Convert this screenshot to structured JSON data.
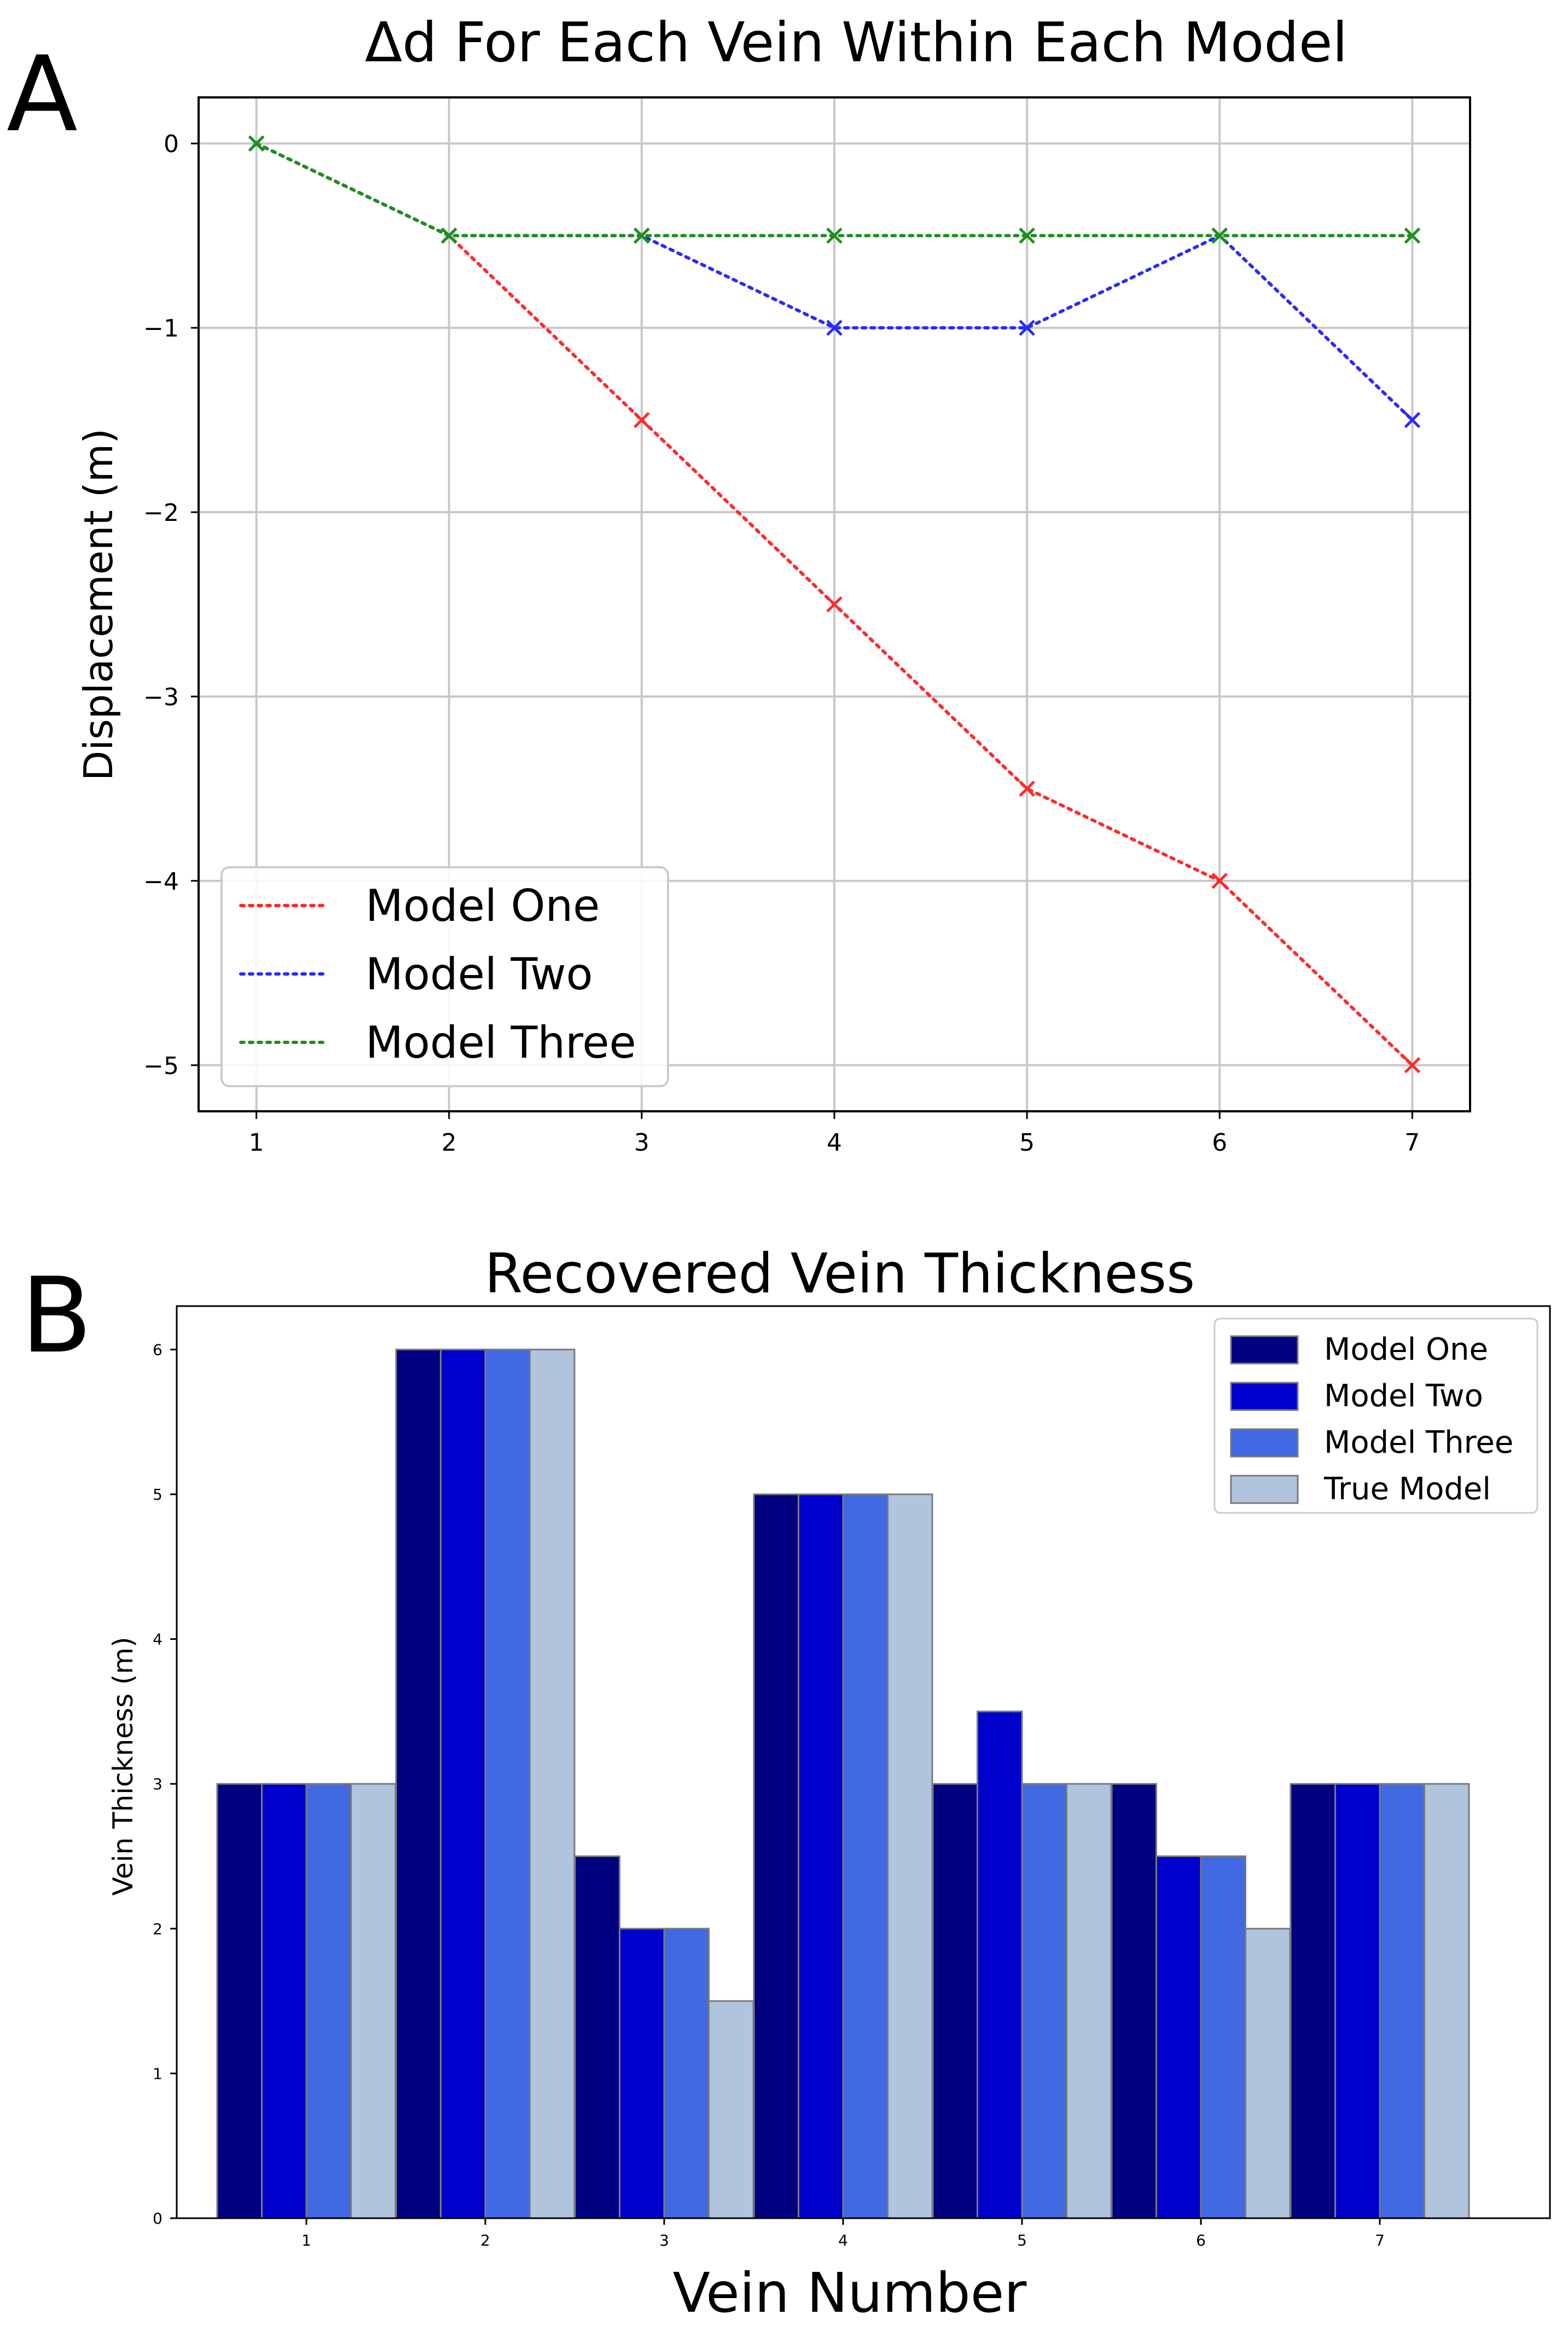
{
  "chart_data": [
    {
      "panel": "A",
      "type": "line",
      "title": "Δd For Each Vein Within Each Model",
      "xlabel": "",
      "ylabel": "Displacement (m)",
      "x": [
        1,
        2,
        3,
        4,
        5,
        6,
        7
      ],
      "xlim": [
        0.7,
        7.3
      ],
      "ylim": [
        -5.25,
        0.25
      ],
      "xticks": [
        "1",
        "2",
        "3",
        "4",
        "5",
        "6",
        "7"
      ],
      "yticks": [
        "0",
        "−1",
        "−2",
        "−3",
        "−4",
        "−5"
      ],
      "ytick_values": [
        0,
        -1,
        -2,
        -3,
        -4,
        -5
      ],
      "grid": true,
      "legend_position": "lower-left",
      "line_style": "dotted",
      "marker": "x",
      "series": [
        {
          "name": "Model One",
          "color": "#ff2a2a",
          "values": [
            0,
            -0.5,
            -1.5,
            -2.5,
            -3.5,
            -4,
            -5
          ]
        },
        {
          "name": "Model Two",
          "color": "#2a2aff",
          "values": [
            0,
            -0.5,
            -0.5,
            -1,
            -1,
            -0.5,
            -1.5
          ]
        },
        {
          "name": "Model Three",
          "color": "#1f8f1f",
          "values": [
            0,
            -0.5,
            -0.5,
            -0.5,
            -0.5,
            -0.5,
            -0.5
          ]
        }
      ]
    },
    {
      "panel": "B",
      "type": "bar",
      "title": "Recovered Vein Thickness",
      "xlabel": "Vein Number",
      "ylabel": "Vein Thickness (m)",
      "categories": [
        "1",
        "2",
        "3",
        "4",
        "5",
        "6",
        "7"
      ],
      "ylim": [
        0,
        6.3
      ],
      "yticks": [
        "0",
        "1",
        "2",
        "3",
        "4",
        "5",
        "6"
      ],
      "ytick_values": [
        0,
        1,
        2,
        3,
        4,
        5,
        6
      ],
      "grid": false,
      "legend_position": "top-right",
      "series": [
        {
          "name": "Model One",
          "color": "#000080",
          "values": [
            3,
            6,
            2.5,
            5,
            3,
            3,
            3
          ]
        },
        {
          "name": "Model Two",
          "color": "#0000cd",
          "values": [
            3,
            6,
            2,
            5,
            3.5,
            2.5,
            3
          ]
        },
        {
          "name": "Model Three",
          "color": "#4169e1",
          "values": [
            3,
            6,
            2,
            5,
            3,
            2.5,
            3
          ]
        },
        {
          "name": "True Model",
          "color": "#b0c4de",
          "values": [
            3,
            6,
            1.5,
            5,
            3,
            2,
            3
          ]
        }
      ]
    }
  ],
  "panel_labels": {
    "a": "A",
    "b": "B"
  }
}
